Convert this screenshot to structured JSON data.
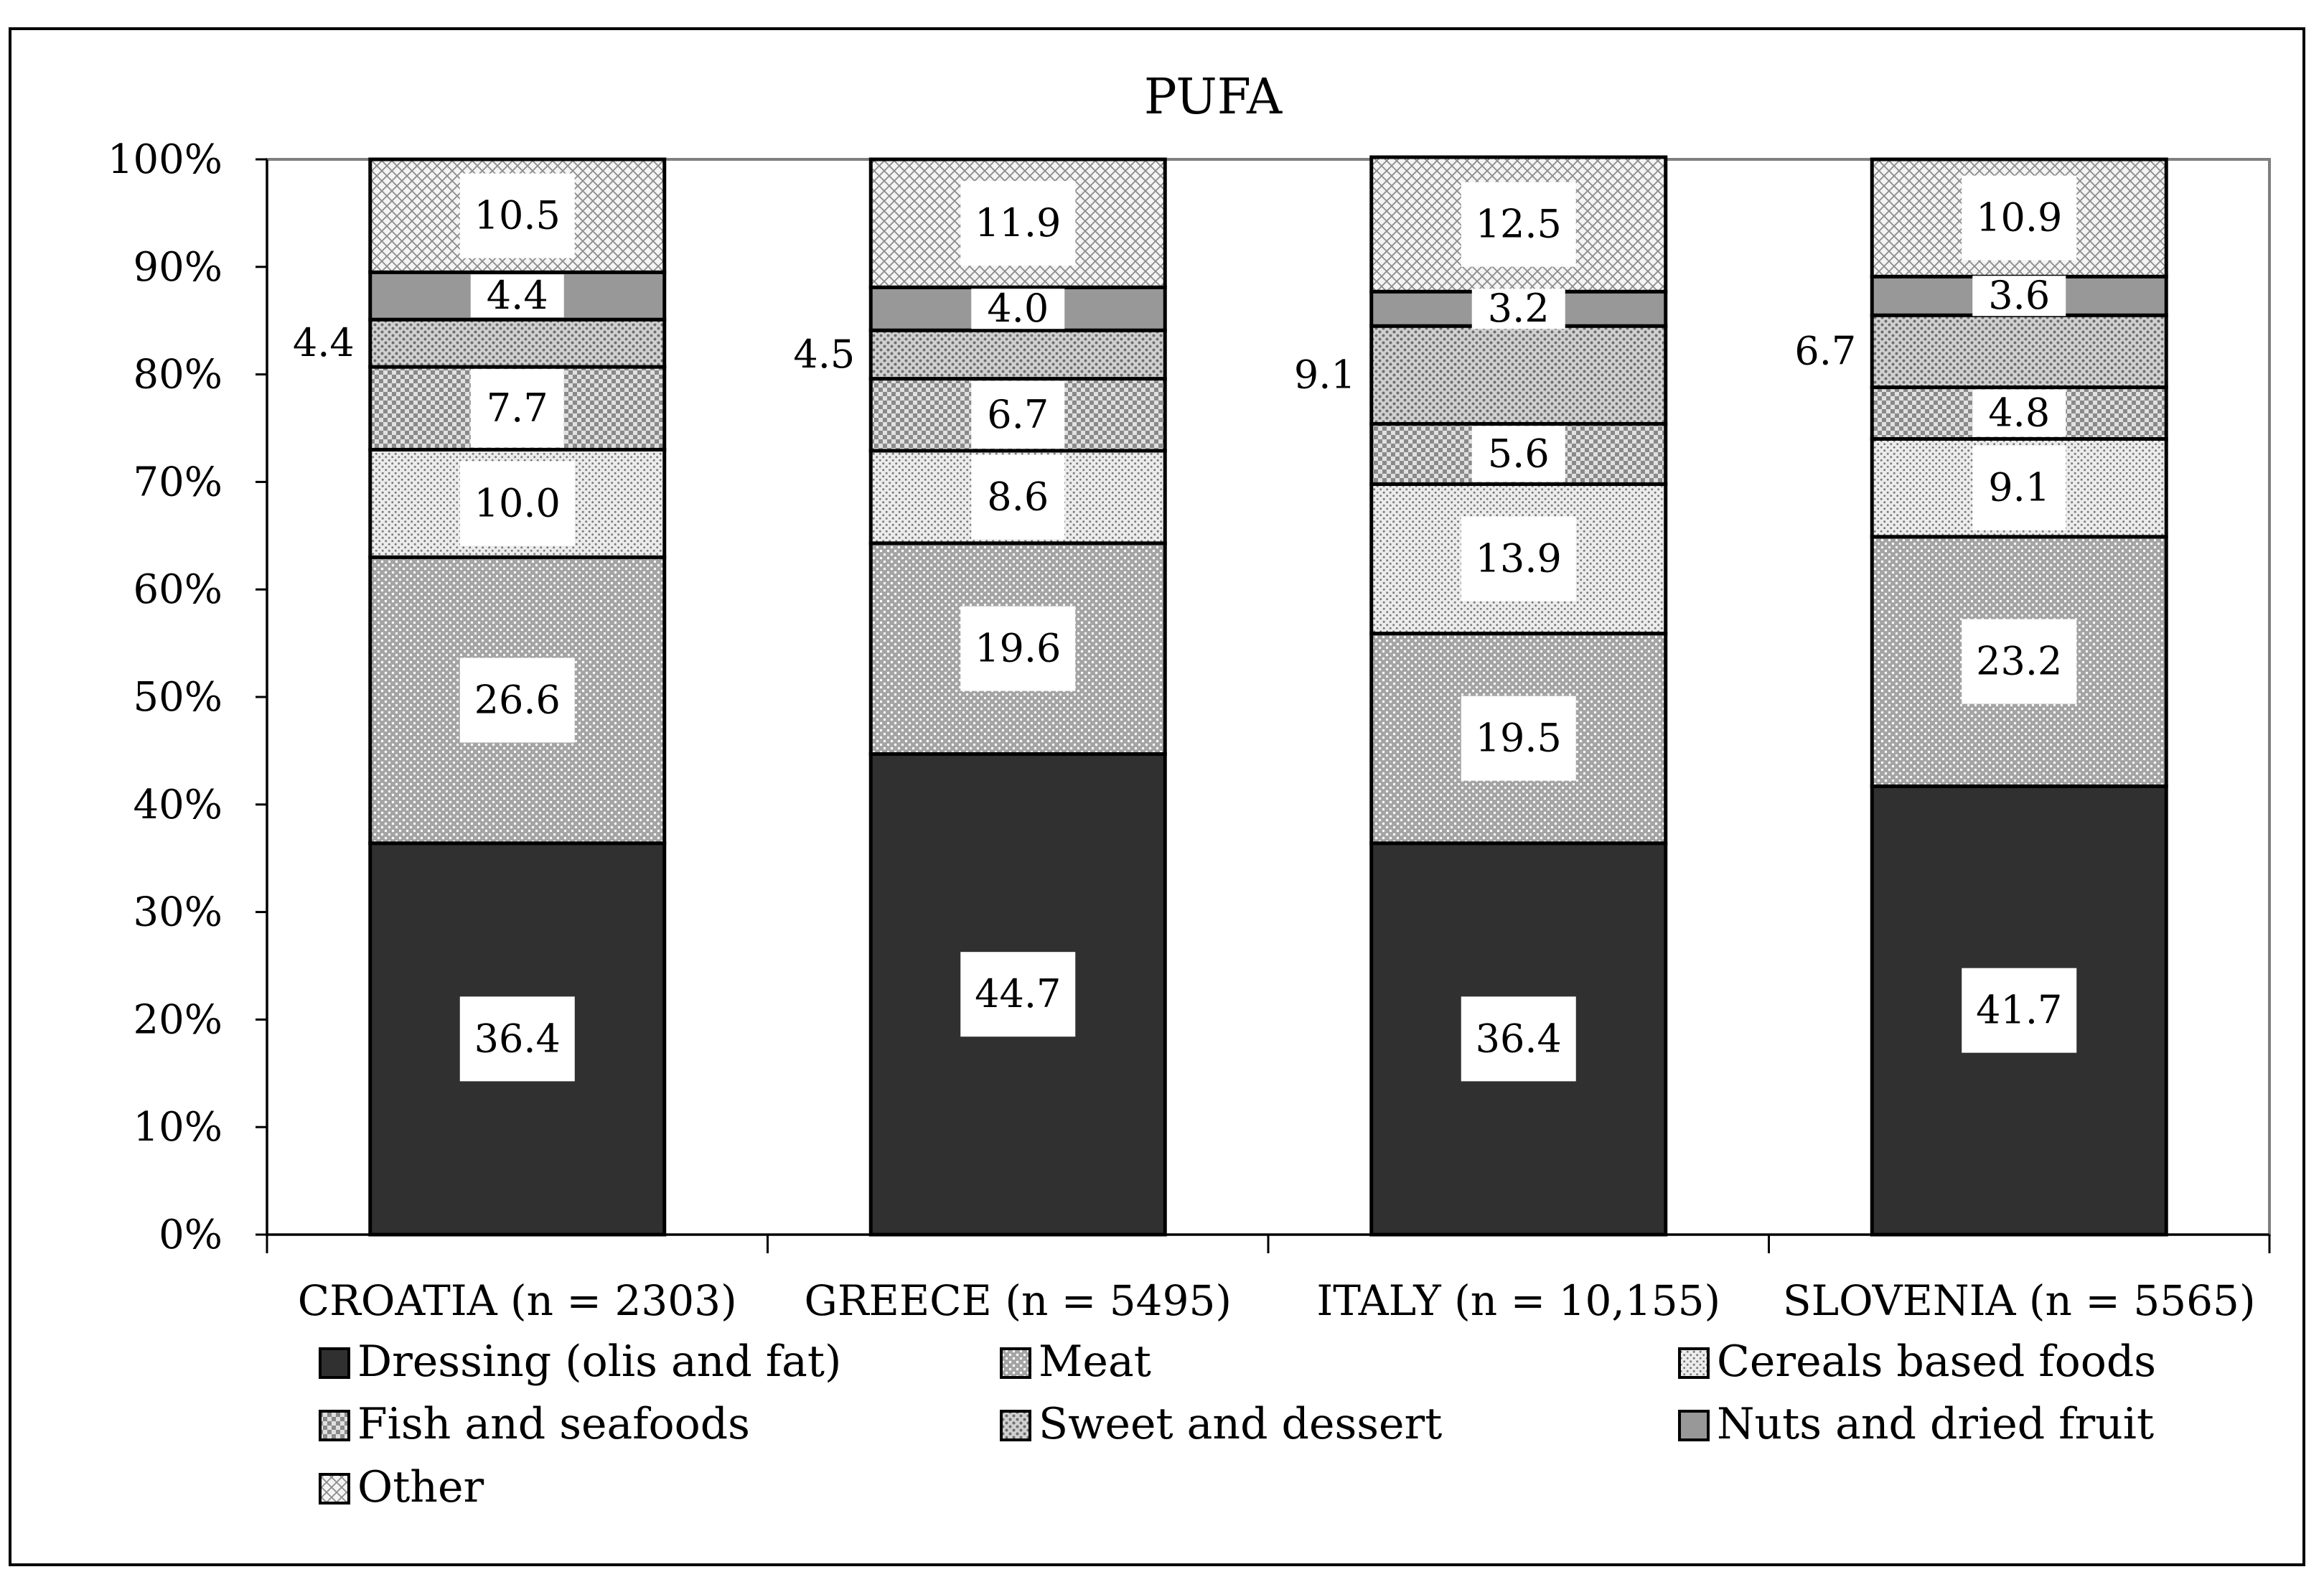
{
  "chart_data": {
    "type": "bar",
    "stacked": true,
    "title": "PUFA",
    "categories": [
      "CROATIA (n = 2303)",
      "GREECE (n = 5495)",
      "ITALY (n = 10,155)",
      "SLOVENIA (n = 5565)"
    ],
    "y_ticks": [
      "0%",
      "10%",
      "20%",
      "30%",
      "40%",
      "50%",
      "60%",
      "70%",
      "80%",
      "90%",
      "100%"
    ],
    "ylim": [
      0,
      100
    ],
    "xlabel": "",
    "ylabel": "",
    "legend_position": "bottom",
    "series": [
      {
        "name": "Dressing (olis and fat)",
        "values": [
          36.4,
          44.7,
          36.4,
          41.7
        ],
        "labels": [
          "36.4",
          "44.7",
          "36.4",
          "41.7"
        ],
        "color": "#303030",
        "pattern": "solid",
        "label_outside": false
      },
      {
        "name": "Meat",
        "values": [
          26.6,
          19.6,
          19.5,
          23.2
        ],
        "labels": [
          "26.6",
          "19.6",
          "19.5",
          "23.2"
        ],
        "color": "#a8a8a8",
        "pattern": "dots-dense",
        "label_outside": false
      },
      {
        "name": "Cereals based foods",
        "values": [
          10.0,
          8.6,
          13.9,
          9.1
        ],
        "labels": [
          "10.0",
          "8.6",
          "13.9",
          "9.1"
        ],
        "color": "#dcdcdc",
        "pattern": "dots-light",
        "label_outside": false
      },
      {
        "name": "Fish and seafoods",
        "values": [
          7.7,
          6.7,
          5.6,
          4.8
        ],
        "labels": [
          "7.7",
          "6.7",
          "5.6",
          "4.8"
        ],
        "color": "#c4c4c4",
        "pattern": "checker",
        "label_outside": false
      },
      {
        "name": "Sweet and dessert",
        "values": [
          4.4,
          4.5,
          9.1,
          6.7
        ],
        "labels": [
          "4.4",
          "4.5",
          "9.1",
          "6.7"
        ],
        "color": "#b4b4b4",
        "pattern": "dots-medium",
        "label_outside": true
      },
      {
        "name": "Nuts and dried fruit",
        "values": [
          4.4,
          4.0,
          3.2,
          3.6
        ],
        "labels": [
          "4.4",
          "4.0",
          "3.2",
          "3.6"
        ],
        "color": "#989898",
        "pattern": "solid",
        "label_outside": false
      },
      {
        "name": "Other",
        "values": [
          10.5,
          11.9,
          12.5,
          10.9
        ],
        "labels": [
          "10.5",
          "11.9",
          "12.5",
          "10.9"
        ],
        "color": "#e2e2e2",
        "pattern": "crosshatch",
        "label_outside": false
      }
    ]
  }
}
